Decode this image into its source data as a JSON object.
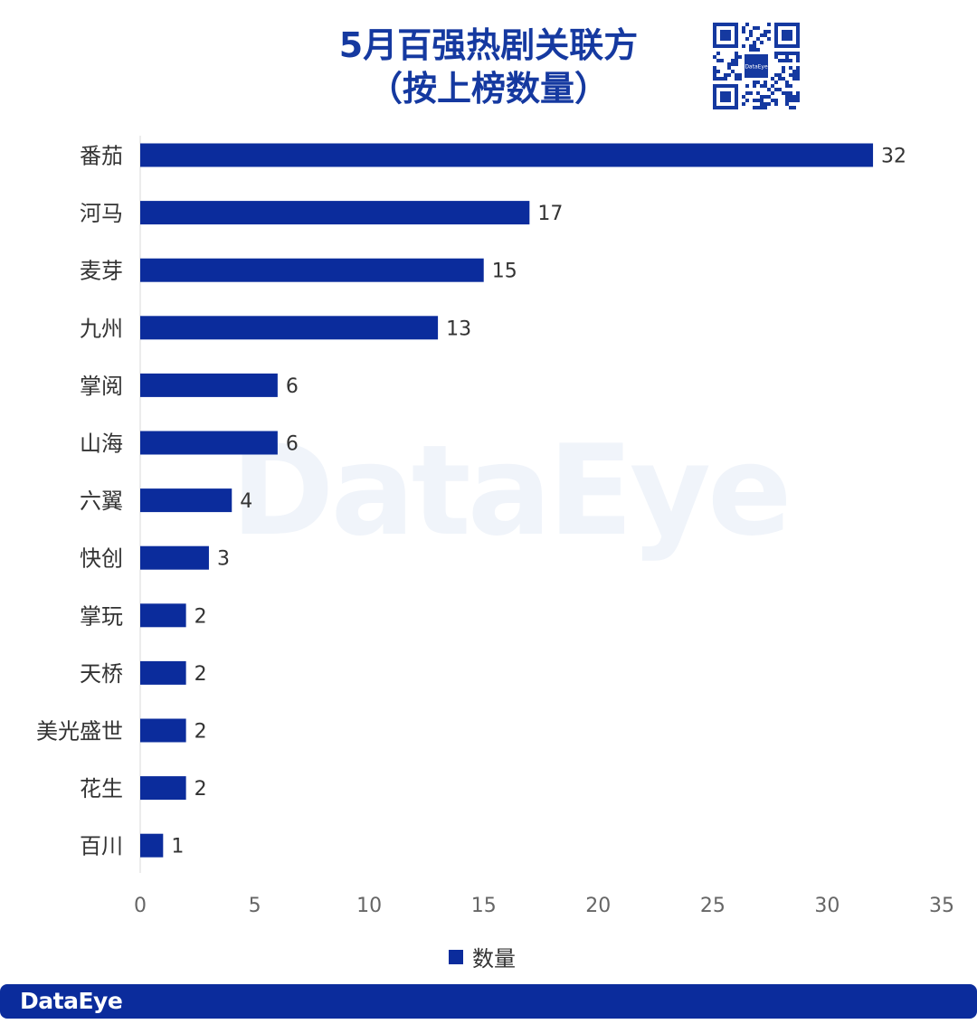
{
  "header": {
    "title_line1": "5月百强热剧关联方",
    "title_line2": "（按上榜数量）",
    "qr_center_label": "DataEye"
  },
  "watermark": "DataEye",
  "footer": {
    "brand": "DataEye"
  },
  "colors": {
    "bar": "#0b2c9c",
    "title": "#1539a0",
    "footer": "#0b2c9c"
  },
  "chart_data": {
    "type": "bar",
    "orientation": "horizontal",
    "categories": [
      "番茄",
      "河马",
      "麦芽",
      "九州",
      "掌阅",
      "山海",
      "六翼",
      "快创",
      "掌玩",
      "天桥",
      "美光盛世",
      "花生",
      "百川"
    ],
    "series": [
      {
        "name": "数量",
        "values": [
          32,
          17,
          15,
          13,
          6,
          6,
          4,
          3,
          2,
          2,
          2,
          2,
          1
        ]
      }
    ],
    "xlim": [
      0,
      35
    ],
    "xticks": [
      0,
      5,
      10,
      15,
      20,
      25,
      30,
      35
    ],
    "data_labels": true,
    "grid": false,
    "legend_position": "bottom"
  }
}
